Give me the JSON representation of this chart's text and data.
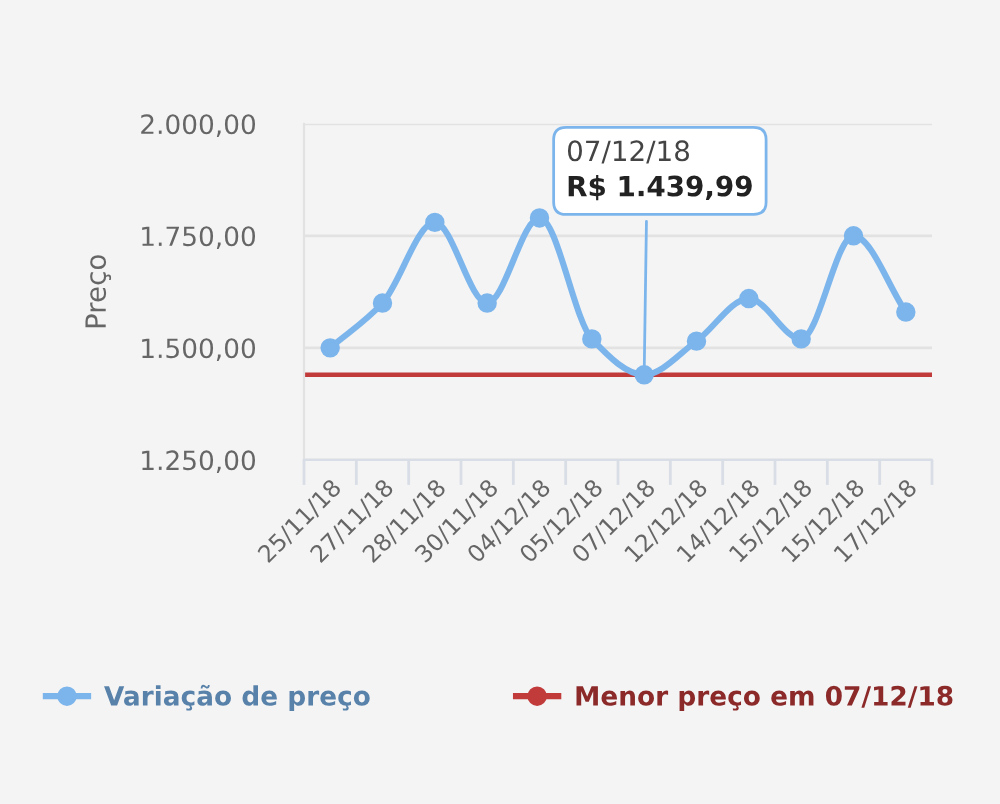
{
  "chart_data": {
    "type": "line",
    "ylabel": "Preço",
    "categories": [
      "25/11/18",
      "27/11/18",
      "28/11/18",
      "30/11/18",
      "04/12/18",
      "05/12/18",
      "07/12/18",
      "12/12/18",
      "14/12/18",
      "15/12/18",
      "15/12/18",
      "17/12/18"
    ],
    "series": [
      {
        "name": "Variação de preço",
        "color": "#7cb5ec",
        "values": [
          1500,
          1600,
          1780,
          1600,
          1790,
          1520,
          1439.99,
          1515,
          1610,
          1520,
          1750,
          1580
        ]
      }
    ],
    "ylim": [
      1250,
      2000
    ],
    "yticks": [
      {
        "value": 1250,
        "label": "1.250,00"
      },
      {
        "value": 1500,
        "label": "1.500,00"
      },
      {
        "value": 1750,
        "label": "1.750,00"
      },
      {
        "value": 2000,
        "label": "2.000,00"
      }
    ],
    "grid": "y",
    "legend": "bottom",
    "marker": "circle",
    "ref_lines": [
      {
        "axis": "y",
        "value": 1439.99,
        "label": "Menor preço em 07/12/18",
        "color": "#c23b3b"
      }
    ],
    "annotations": [
      {
        "text": "07/12/18\nR$ 1.439,99",
        "x": "07/12/18",
        "y": 1439.99
      }
    ]
  }
}
